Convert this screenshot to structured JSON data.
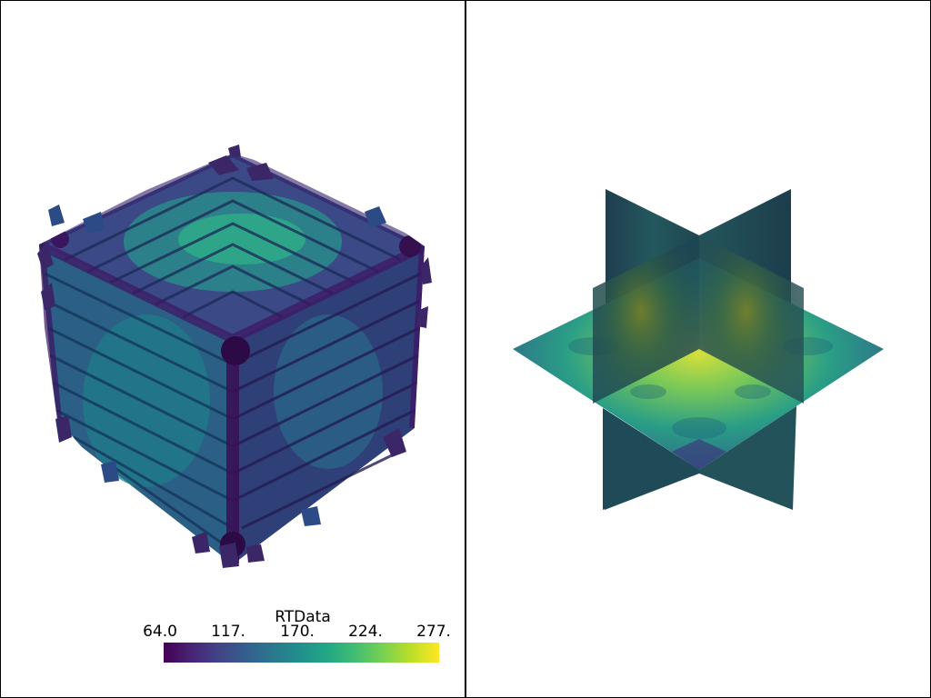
{
  "scalar_bar": {
    "title": "RTData",
    "ticks": [
      "64.0",
      "117.",
      "170.",
      "224.",
      "277."
    ],
    "colormap": [
      "#440154",
      "#482475",
      "#414487",
      "#355f8d",
      "#2a788e",
      "#21918c",
      "#22a884",
      "#44bf70",
      "#7ad151",
      "#bddf26",
      "#fde725"
    ]
  },
  "views": {
    "left": {
      "content": "contour-isosurface"
    },
    "right": {
      "content": "orthogonal-slices"
    }
  },
  "background": "#ffffff"
}
